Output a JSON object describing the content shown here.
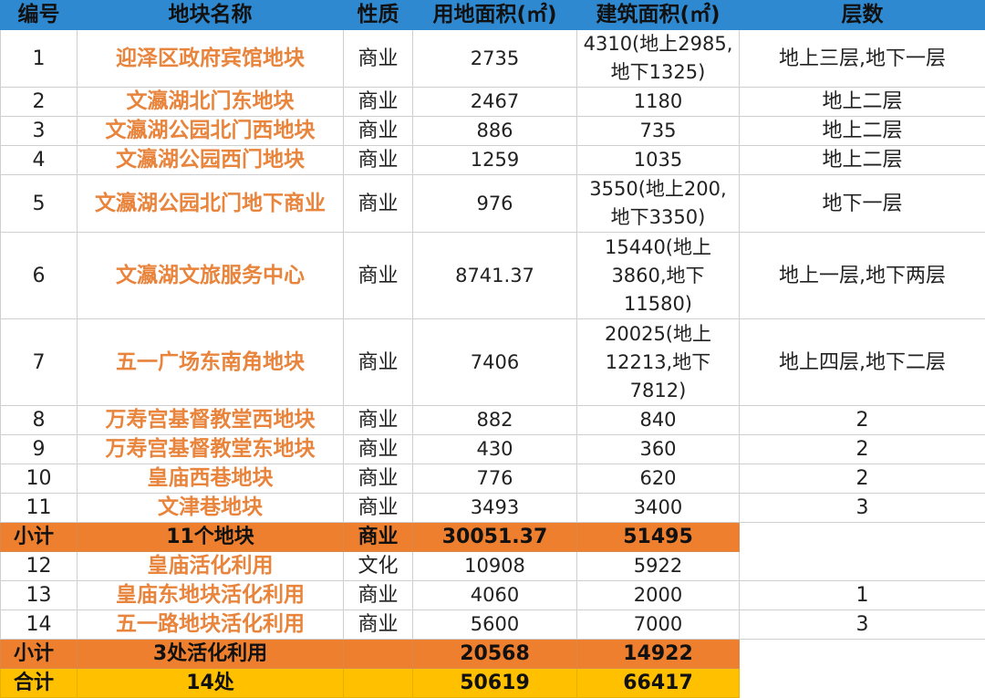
{
  "headers": [
    "编号",
    "地块名称",
    "性质",
    "用地面积(㎡)",
    "建筑面积(㎡)",
    "层数"
  ],
  "rows": [
    {
      "id": "1",
      "name": "迎泽区政府宾馆地块",
      "type": "商业",
      "land": "2735",
      "build": "4310(地上2985,\n地下1325)",
      "floors": "地上三层,地下一层"
    },
    {
      "id": "2",
      "name": "文瀛湖北门东地块",
      "type": "商业",
      "land": "2467",
      "build": "1180",
      "floors": "地上二层"
    },
    {
      "id": "3",
      "name": "文瀛湖公园北门西地块",
      "type": "商业",
      "land": "886",
      "build": "735",
      "floors": "地上二层"
    },
    {
      "id": "4",
      "name": "文瀛湖公园西门地块",
      "type": "商业",
      "land": "1259",
      "build": "1035",
      "floors": "地上二层"
    },
    {
      "id": "5",
      "name": "文瀛湖公园北门地下商业",
      "type": "商业",
      "land": "976",
      "build": "3550(地上200,\n地下3350)",
      "floors": "地下一层"
    },
    {
      "id": "6",
      "name": "文瀛湖文旅服务中心",
      "type": "商业",
      "land": "8741.37",
      "build": "15440(地上\n3860,地下\n11580)",
      "floors": "地上一层,地下两层"
    },
    {
      "id": "7",
      "name": "五一广场东南角地块",
      "type": "商业",
      "land": "7406",
      "build": "20025(地上\n12213,地下\n7812)",
      "floors": "地上四层,地下二层"
    },
    {
      "id": "8",
      "name": "万寿宫基督教堂西地块",
      "type": "商业",
      "land": "882",
      "build": "840",
      "floors": "2"
    },
    {
      "id": "9",
      "name": "万寿宫基督教堂东地块",
      "type": "商业",
      "land": "430",
      "build": "360",
      "floors": "2"
    },
    {
      "id": "10",
      "name": "皇庙西巷地块",
      "type": "商业",
      "land": "776",
      "build": "620",
      "floors": "2"
    },
    {
      "id": "11",
      "name": "文津巷地块",
      "type": "商业",
      "land": "3493",
      "build": "3400",
      "floors": "3"
    }
  ],
  "subtotal1": {
    "label": "小计",
    "name": "11个地块",
    "type": "商业",
    "land": "30051.37",
    "build": "51495"
  },
  "rows2": [
    {
      "id": "12",
      "name": "皇庙活化利用",
      "type": "文化",
      "land": "10908",
      "build": "5922",
      "floors": ""
    },
    {
      "id": "13",
      "name": "皇庙东地块活化利用",
      "type": "商业",
      "land": "4060",
      "build": "2000",
      "floors": "1"
    },
    {
      "id": "14",
      "name": "五一路地块活化利用",
      "type": "商业",
      "land": "5600",
      "build": "7000",
      "floors": "3"
    }
  ],
  "subtotal2": {
    "label": "小计",
    "name": "3处活化利用",
    "land": "20568",
    "build": "14922"
  },
  "total": {
    "label": "合计",
    "name": "14处",
    "land": "50619",
    "build": "66417"
  },
  "colors": {
    "header": "#2f89d0",
    "name_text": "#e8843c",
    "subtotal": "#ee7f2e",
    "total": "#ffc000"
  }
}
